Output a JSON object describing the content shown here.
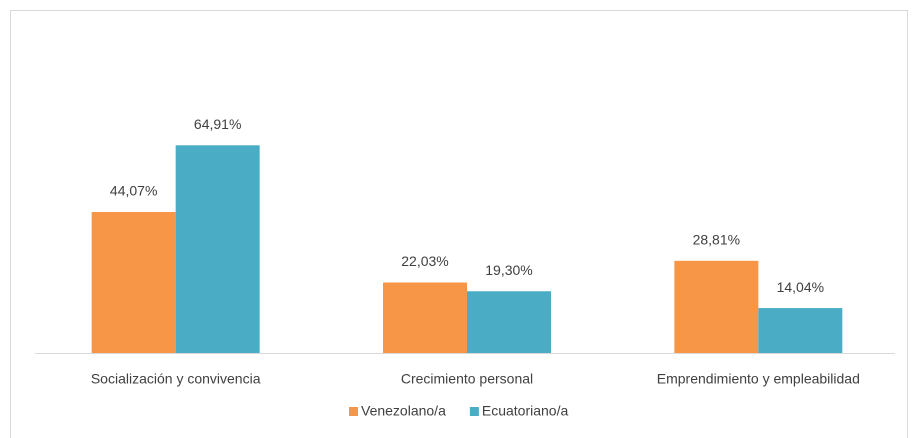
{
  "chart_data": {
    "type": "bar",
    "categories": [
      "Socialización y convivencia",
      "Crecimiento personal",
      "Emprendimiento y empleabilidad"
    ],
    "series": [
      {
        "name": "Venezolano/a",
        "color": "#f79646",
        "values": [
          44.07,
          22.03,
          28.81
        ],
        "value_labels": [
          "44,07%",
          "22,03%",
          "28,81%"
        ]
      },
      {
        "name": "Ecuatoriano/a",
        "color": "#4bacc6",
        "values": [
          64.91,
          19.3,
          14.04
        ],
        "value_labels": [
          "64,91%",
          "19,30%",
          "14,04%"
        ]
      }
    ],
    "legend": "bottom"
  }
}
